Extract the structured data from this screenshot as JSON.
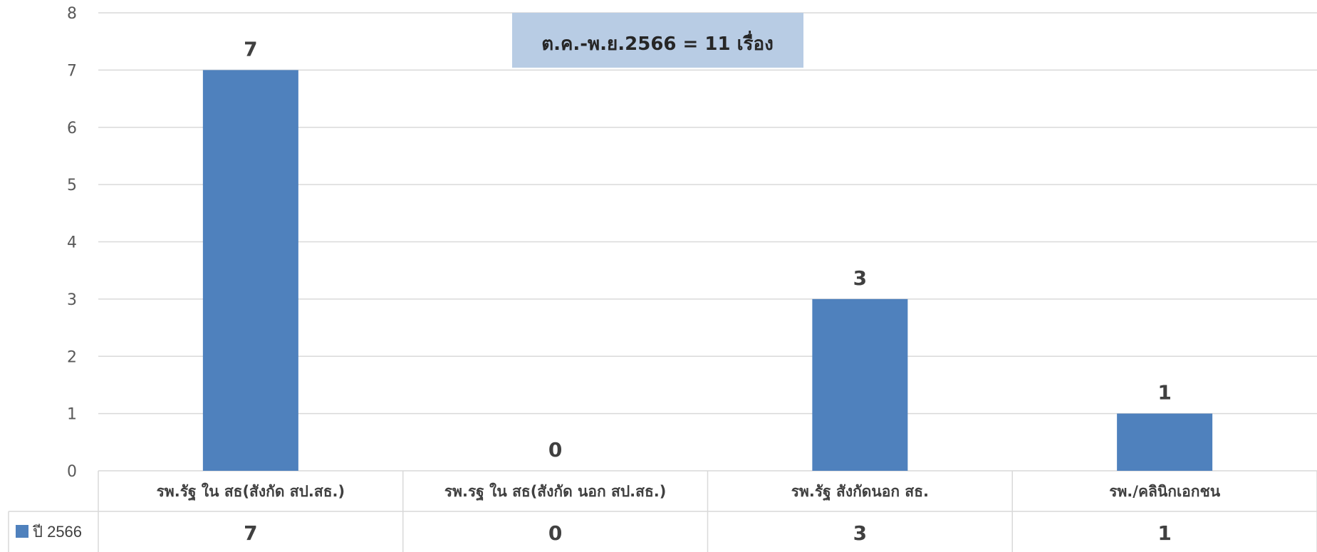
{
  "chart_data": {
    "type": "bar",
    "categories": [
      "รพ.รัฐ ใน สธ(สังกัด สป.สธ.)",
      "รพ.รฐ ใน สธ(สังกัด นอก สป.สธ.)",
      "รพ.รัฐ สังกัดนอก สธ.",
      "รพ./คลินิกเอกชน"
    ],
    "series": [
      {
        "name": "ปี 2566",
        "values": [
          7,
          0,
          3,
          1
        ]
      }
    ],
    "ylim": [
      0,
      8
    ],
    "yticks": [
      0,
      1,
      2,
      3,
      4,
      5,
      6,
      7,
      8
    ],
    "annotation": "ต.ค.-พ.ย.2566 = 11 เรื่อง",
    "grid": true,
    "data_table": true,
    "colors": {
      "bar": "#4F81BD",
      "grid": "#D9D9D9",
      "annotation_bg": "#B8CCE4"
    }
  }
}
